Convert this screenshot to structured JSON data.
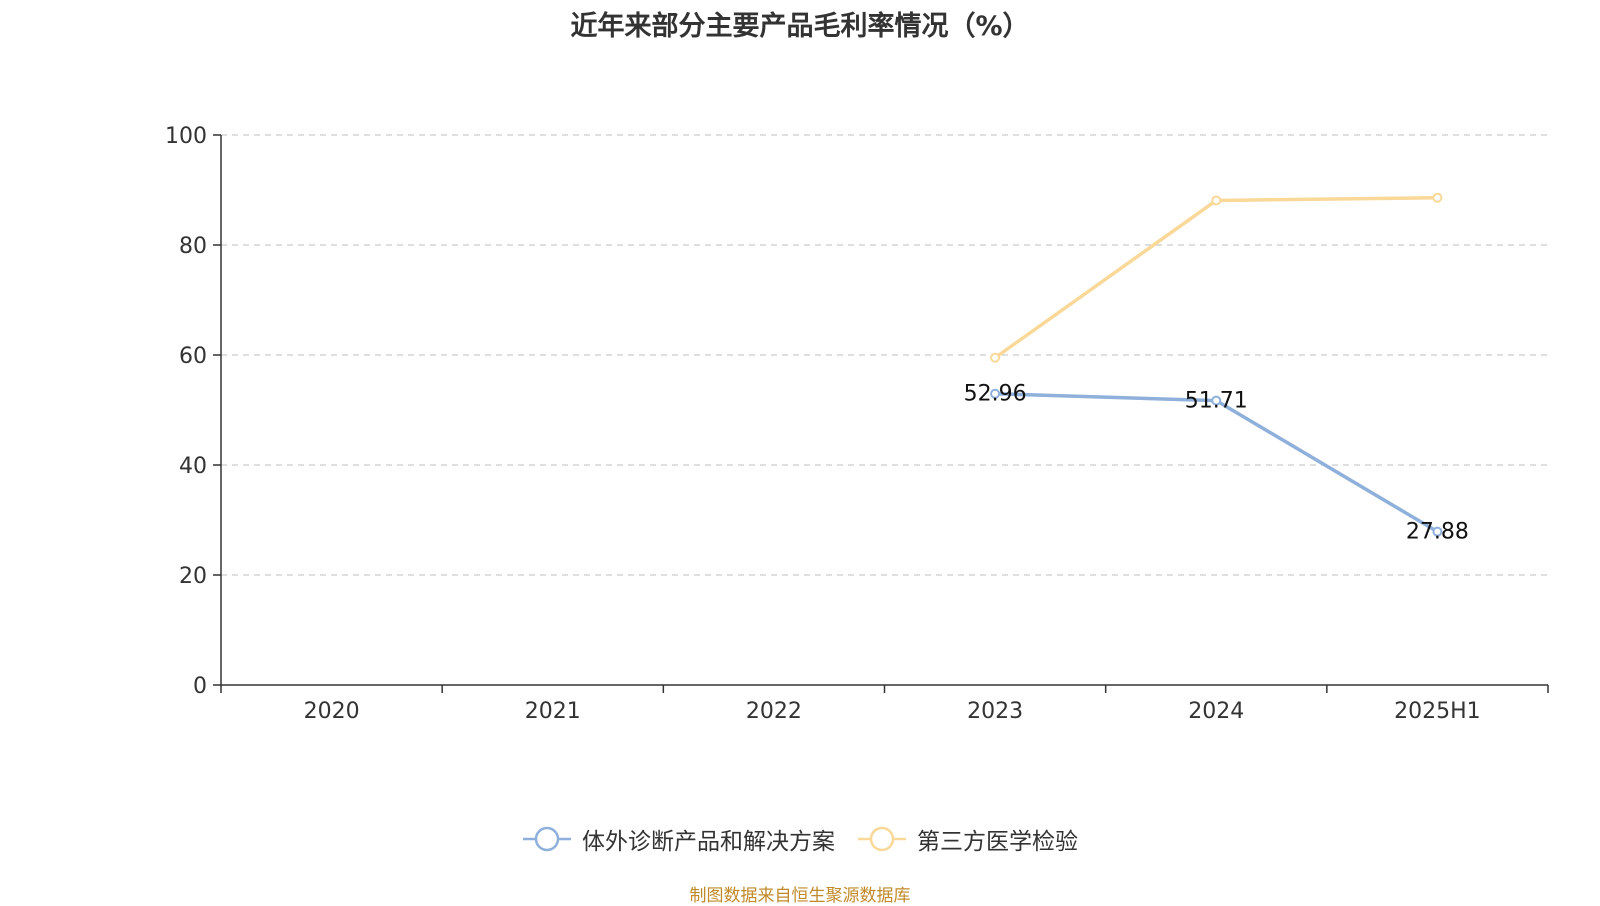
{
  "chart_data": {
    "type": "line",
    "title": "近年来部分主要产品毛利率情况（%）",
    "categories": [
      "2020",
      "2021",
      "2022",
      "2023",
      "2024",
      "2025H1"
    ],
    "ylim": [
      0,
      100
    ],
    "yticks": [
      0,
      20,
      40,
      60,
      80,
      100
    ],
    "grid": true,
    "legend_position": "bottom",
    "series": [
      {
        "name": "体外诊断产品和解决方案",
        "color": "#8eb0db",
        "values": [
          null,
          null,
          null,
          52.96,
          51.71,
          27.88
        ],
        "labels": [
          "",
          "",
          "",
          "52.96",
          "51.71",
          "27.88"
        ]
      },
      {
        "name": "第三方医学检验",
        "color": "#f9d898",
        "values": [
          null,
          null,
          null,
          59.5,
          88.1,
          88.6
        ]
      }
    ]
  },
  "footer": {
    "source": "制图数据来自恒生聚源数据库"
  }
}
